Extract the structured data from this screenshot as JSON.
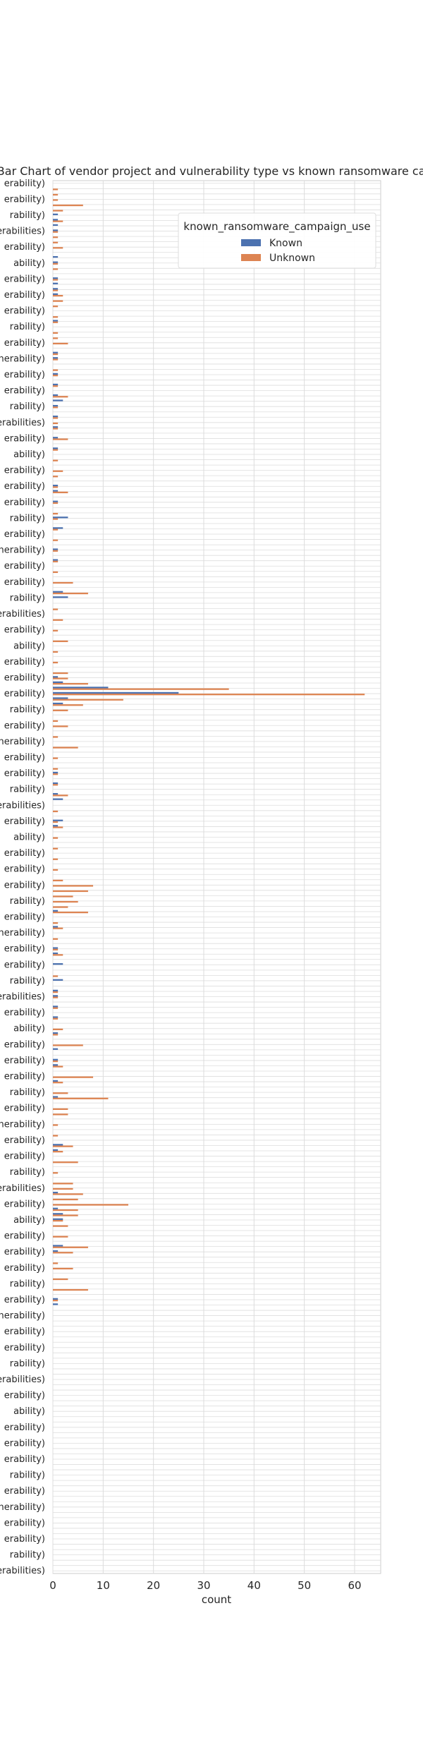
{
  "chart_data": {
    "type": "bar",
    "orientation": "horizontal",
    "title": "ed Bar Chart of  vendor project and vulnerability type vs known ransomware camp",
    "xlabel": "count",
    "ylabel": "",
    "xlim": [
      0,
      65
    ],
    "x_ticks": [
      0,
      10,
      20,
      30,
      40,
      50,
      60
    ],
    "grid": true,
    "legend": {
      "title": "known_ransomware_campaign_use",
      "placement": "top-right"
    },
    "series": [
      {
        "name": "Known",
        "color": "#4c72b0"
      },
      {
        "name": "Unknown",
        "color": "#dd8452"
      }
    ],
    "category_count": 262,
    "visible_category_label_fragments": [
      "erability)",
      "erability)",
      "rability)",
      "ulnerabilities)",
      "erability)",
      "ability)",
      "erability)",
      "erability)",
      "erability)",
      "rability)",
      "erability)",
      "ulnerability)"
    ],
    "bars": [
      {
        "row": 1,
        "known": 0,
        "unknown": 1
      },
      {
        "row": 2,
        "known": 0,
        "unknown": 1
      },
      {
        "row": 3,
        "known": 0,
        "unknown": 1
      },
      {
        "row": 4,
        "known": 0,
        "unknown": 6
      },
      {
        "row": 5,
        "known": 0,
        "unknown": 2
      },
      {
        "row": 6,
        "known": 1,
        "unknown": 0
      },
      {
        "row": 7,
        "known": 1,
        "unknown": 2
      },
      {
        "row": 8,
        "known": 1,
        "unknown": 0
      },
      {
        "row": 9,
        "known": 1,
        "unknown": 1
      },
      {
        "row": 10,
        "known": 0,
        "unknown": 1
      },
      {
        "row": 11,
        "known": 0,
        "unknown": 1
      },
      {
        "row": 12,
        "known": 0,
        "unknown": 2
      },
      {
        "row": 14,
        "known": 1,
        "unknown": 0
      },
      {
        "row": 15,
        "known": 1,
        "unknown": 1
      },
      {
        "row": 16,
        "known": 0,
        "unknown": 1
      },
      {
        "row": 18,
        "known": 1,
        "unknown": 1
      },
      {
        "row": 19,
        "known": 1,
        "unknown": 0
      },
      {
        "row": 20,
        "known": 1,
        "unknown": 1
      },
      {
        "row": 21,
        "known": 1,
        "unknown": 2
      },
      {
        "row": 22,
        "known": 0,
        "unknown": 2
      },
      {
        "row": 23,
        "known": 0,
        "unknown": 1
      },
      {
        "row": 25,
        "known": 0,
        "unknown": 1
      },
      {
        "row": 26,
        "known": 1,
        "unknown": 1
      },
      {
        "row": 28,
        "known": 0,
        "unknown": 1
      },
      {
        "row": 29,
        "known": 0,
        "unknown": 1
      },
      {
        "row": 30,
        "known": 0,
        "unknown": 3
      },
      {
        "row": 32,
        "known": 1,
        "unknown": 1
      },
      {
        "row": 33,
        "known": 1,
        "unknown": 1
      },
      {
        "row": 35,
        "known": 0,
        "unknown": 1
      },
      {
        "row": 36,
        "known": 1,
        "unknown": 1
      },
      {
        "row": 38,
        "known": 1,
        "unknown": 1
      },
      {
        "row": 40,
        "known": 1,
        "unknown": 3
      },
      {
        "row": 41,
        "known": 2,
        "unknown": 0
      },
      {
        "row": 42,
        "known": 1,
        "unknown": 1
      },
      {
        "row": 44,
        "known": 1,
        "unknown": 1
      },
      {
        "row": 45,
        "known": 0,
        "unknown": 1
      },
      {
        "row": 46,
        "known": 1,
        "unknown": 1
      },
      {
        "row": 48,
        "known": 1,
        "unknown": 3
      },
      {
        "row": 50,
        "known": 1,
        "unknown": 1
      },
      {
        "row": 52,
        "known": 0,
        "unknown": 1
      },
      {
        "row": 54,
        "known": 0,
        "unknown": 2
      },
      {
        "row": 55,
        "known": 0,
        "unknown": 1
      },
      {
        "row": 57,
        "known": 1,
        "unknown": 1
      },
      {
        "row": 58,
        "known": 1,
        "unknown": 3
      },
      {
        "row": 60,
        "known": 1,
        "unknown": 1
      },
      {
        "row": 62,
        "known": 0,
        "unknown": 1
      },
      {
        "row": 63,
        "known": 3,
        "unknown": 1
      },
      {
        "row": 65,
        "known": 2,
        "unknown": 1
      },
      {
        "row": 67,
        "known": 0,
        "unknown": 1
      },
      {
        "row": 69,
        "known": 1,
        "unknown": 1
      },
      {
        "row": 71,
        "known": 1,
        "unknown": 1
      },
      {
        "row": 73,
        "known": 0,
        "unknown": 1
      },
      {
        "row": 75,
        "known": 0,
        "unknown": 4
      },
      {
        "row": 77,
        "known": 2,
        "unknown": 7
      },
      {
        "row": 78,
        "known": 3,
        "unknown": 0
      },
      {
        "row": 80,
        "known": 0,
        "unknown": 1
      },
      {
        "row": 82,
        "known": 0,
        "unknown": 2
      },
      {
        "row": 84,
        "known": 0,
        "unknown": 1
      },
      {
        "row": 86,
        "known": 0,
        "unknown": 3
      },
      {
        "row": 88,
        "known": 0,
        "unknown": 1
      },
      {
        "row": 90,
        "known": 0,
        "unknown": 1
      },
      {
        "row": 92,
        "known": 0,
        "unknown": 3
      },
      {
        "row": 93,
        "known": 1,
        "unknown": 3
      },
      {
        "row": 94,
        "known": 2,
        "unknown": 7
      },
      {
        "row": 95,
        "known": 11,
        "unknown": 35
      },
      {
        "row": 96,
        "known": 25,
        "unknown": 62
      },
      {
        "row": 97,
        "known": 3,
        "unknown": 14
      },
      {
        "row": 98,
        "known": 2,
        "unknown": 6
      },
      {
        "row": 99,
        "known": 0,
        "unknown": 3
      },
      {
        "row": 101,
        "known": 0,
        "unknown": 1
      },
      {
        "row": 102,
        "known": 0,
        "unknown": 3
      },
      {
        "row": 104,
        "known": 0,
        "unknown": 1
      },
      {
        "row": 106,
        "known": 0,
        "unknown": 5
      },
      {
        "row": 108,
        "known": 0,
        "unknown": 1
      },
      {
        "row": 110,
        "known": 0,
        "unknown": 1
      },
      {
        "row": 111,
        "known": 1,
        "unknown": 1
      },
      {
        "row": 113,
        "known": 1,
        "unknown": 1
      },
      {
        "row": 115,
        "known": 1,
        "unknown": 3
      },
      {
        "row": 116,
        "known": 2,
        "unknown": 0
      },
      {
        "row": 118,
        "known": 0,
        "unknown": 1
      },
      {
        "row": 120,
        "known": 2,
        "unknown": 1
      },
      {
        "row": 121,
        "known": 1,
        "unknown": 2
      },
      {
        "row": 123,
        "known": 0,
        "unknown": 1
      },
      {
        "row": 125,
        "known": 0,
        "unknown": 1
      },
      {
        "row": 127,
        "known": 0,
        "unknown": 1
      },
      {
        "row": 129,
        "known": 0,
        "unknown": 1
      },
      {
        "row": 131,
        "known": 0,
        "unknown": 2
      },
      {
        "row": 132,
        "known": 0,
        "unknown": 8
      },
      {
        "row": 133,
        "known": 0,
        "unknown": 7
      },
      {
        "row": 134,
        "known": 0,
        "unknown": 4
      },
      {
        "row": 135,
        "known": 0,
        "unknown": 5
      },
      {
        "row": 136,
        "known": 0,
        "unknown": 3
      },
      {
        "row": 137,
        "known": 1,
        "unknown": 7
      },
      {
        "row": 139,
        "known": 0,
        "unknown": 1
      },
      {
        "row": 140,
        "known": 1,
        "unknown": 2
      },
      {
        "row": 142,
        "known": 0,
        "unknown": 1
      },
      {
        "row": 144,
        "known": 1,
        "unknown": 1
      },
      {
        "row": 145,
        "known": 1,
        "unknown": 2
      },
      {
        "row": 147,
        "known": 2,
        "unknown": 0
      },
      {
        "row": 149,
        "known": 0,
        "unknown": 1
      },
      {
        "row": 150,
        "known": 2,
        "unknown": 0
      },
      {
        "row": 152,
        "known": 1,
        "unknown": 1
      },
      {
        "row": 153,
        "known": 1,
        "unknown": 1
      },
      {
        "row": 155,
        "known": 1,
        "unknown": 1
      },
      {
        "row": 157,
        "known": 1,
        "unknown": 1
      },
      {
        "row": 159,
        "known": 0,
        "unknown": 2
      },
      {
        "row": 160,
        "known": 1,
        "unknown": 1
      },
      {
        "row": 162,
        "known": 0,
        "unknown": 6
      },
      {
        "row": 163,
        "known": 1,
        "unknown": 0
      },
      {
        "row": 165,
        "known": 1,
        "unknown": 1
      },
      {
        "row": 166,
        "known": 1,
        "unknown": 2
      },
      {
        "row": 168,
        "known": 0,
        "unknown": 8
      },
      {
        "row": 169,
        "known": 1,
        "unknown": 2
      },
      {
        "row": 171,
        "known": 0,
        "unknown": 3
      },
      {
        "row": 172,
        "known": 1,
        "unknown": 11
      },
      {
        "row": 174,
        "known": 0,
        "unknown": 3
      },
      {
        "row": 175,
        "known": 0,
        "unknown": 3
      },
      {
        "row": 177,
        "known": 0,
        "unknown": 1
      },
      {
        "row": 179,
        "known": 0,
        "unknown": 1
      },
      {
        "row": 181,
        "known": 2,
        "unknown": 4
      },
      {
        "row": 182,
        "known": 1,
        "unknown": 2
      },
      {
        "row": 184,
        "known": 0,
        "unknown": 5
      },
      {
        "row": 186,
        "known": 0,
        "unknown": 1
      },
      {
        "row": 188,
        "known": 0,
        "unknown": 4
      },
      {
        "row": 189,
        "known": 0,
        "unknown": 4
      },
      {
        "row": 190,
        "known": 1,
        "unknown": 6
      },
      {
        "row": 191,
        "known": 0,
        "unknown": 5
      },
      {
        "row": 192,
        "known": 0,
        "unknown": 15
      },
      {
        "row": 193,
        "known": 1,
        "unknown": 5
      },
      {
        "row": 194,
        "known": 2,
        "unknown": 5
      },
      {
        "row": 195,
        "known": 2,
        "unknown": 2
      },
      {
        "row": 196,
        "known": 0,
        "unknown": 3
      },
      {
        "row": 198,
        "known": 0,
        "unknown": 3
      },
      {
        "row": 200,
        "known": 2,
        "unknown": 7
      },
      {
        "row": 201,
        "known": 1,
        "unknown": 4
      },
      {
        "row": 203,
        "known": 0,
        "unknown": 1
      },
      {
        "row": 204,
        "known": 0,
        "unknown": 4
      },
      {
        "row": 206,
        "known": 0,
        "unknown": 3
      },
      {
        "row": 208,
        "known": 0,
        "unknown": 7
      },
      {
        "row": 210,
        "known": 1,
        "unknown": 1
      },
      {
        "row": 211,
        "known": 1,
        "unknown": 0
      }
    ]
  }
}
